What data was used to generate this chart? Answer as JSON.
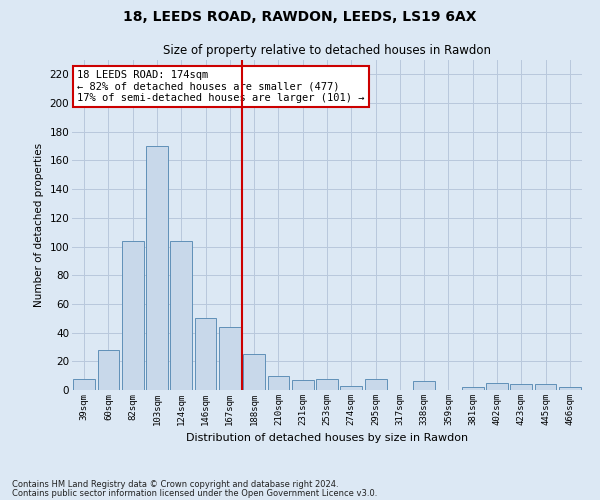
{
  "title1": "18, LEEDS ROAD, RAWDON, LEEDS, LS19 6AX",
  "title2": "Size of property relative to detached houses in Rawdon",
  "xlabel": "Distribution of detached houses by size in Rawdon",
  "ylabel": "Number of detached properties",
  "categories": [
    "39sqm",
    "60sqm",
    "82sqm",
    "103sqm",
    "124sqm",
    "146sqm",
    "167sqm",
    "188sqm",
    "210sqm",
    "231sqm",
    "253sqm",
    "274sqm",
    "295sqm",
    "317sqm",
    "338sqm",
    "359sqm",
    "381sqm",
    "402sqm",
    "423sqm",
    "445sqm",
    "466sqm"
  ],
  "bar_values": [
    8,
    28,
    104,
    170,
    104,
    50,
    44,
    25,
    10,
    7,
    8,
    3,
    8,
    0,
    6,
    0,
    2,
    5,
    4,
    4,
    2
  ],
  "bar_color": "#c8d8ea",
  "bar_edge_color": "#6090b8",
  "vline_x": 6.5,
  "vline_color": "#cc0000",
  "annotation_text": "18 LEEDS ROAD: 174sqm\n← 82% of detached houses are smaller (477)\n17% of semi-detached houses are larger (101) →",
  "annotation_box_facecolor": "#ffffff",
  "annotation_box_edge": "#cc0000",
  "ylim": [
    0,
    230
  ],
  "yticks": [
    0,
    20,
    40,
    60,
    80,
    100,
    120,
    140,
    160,
    180,
    200,
    220
  ],
  "grid_color": "#b8c8dc",
  "background_color": "#dce8f4",
  "fig_facecolor": "#dce8f4",
  "footer1": "Contains HM Land Registry data © Crown copyright and database right 2024.",
  "footer2": "Contains public sector information licensed under the Open Government Licence v3.0."
}
